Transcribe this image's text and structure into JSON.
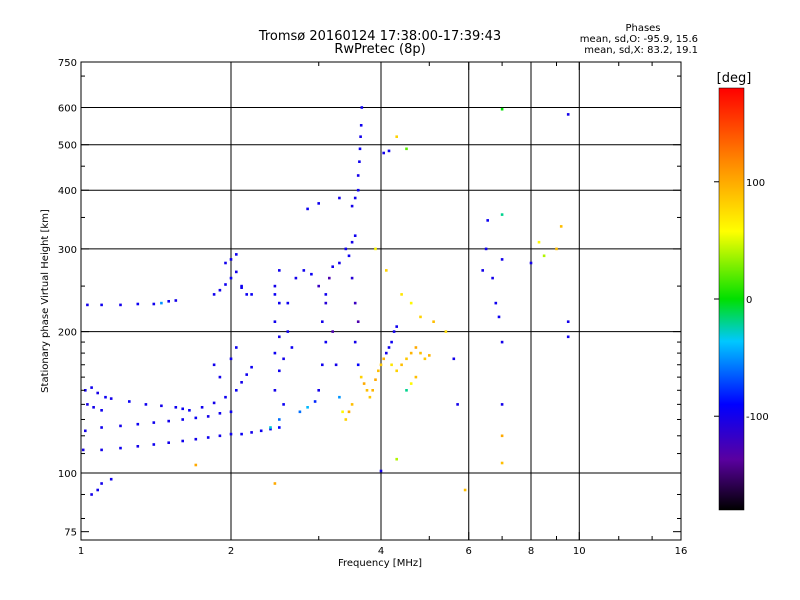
{
  "chart_data": {
    "type": "scatter",
    "title": "Tromsø 20160124 17:38:00-17:39:43",
    "subtitle": "RwPretec (8p)",
    "xlabel": "Frequency [MHz]",
    "ylabel": "Stationary phase Virtual Height [km]",
    "xscale": "log",
    "yscale": "log",
    "xlim": [
      1,
      16
    ],
    "ylim": [
      72,
      750
    ],
    "x_ticks": [
      1,
      2,
      4,
      6,
      8,
      10,
      16
    ],
    "x_tick_labels": [
      "1",
      "2",
      "4",
      "6",
      "8",
      "10",
      "16"
    ],
    "x_minor_ticks": [
      3,
      5,
      7,
      9,
      12,
      14
    ],
    "x_gridlines": [
      2,
      4,
      6,
      8,
      10
    ],
    "y_ticks": [
      75,
      100,
      200,
      300,
      400,
      500,
      600,
      750
    ],
    "y_tick_labels": [
      "75",
      "100",
      "200",
      "300",
      "400",
      "500",
      "600",
      "750"
    ],
    "y_gridlines": [
      100,
      200,
      300,
      400,
      500,
      600
    ],
    "grid": true,
    "stats": {
      "heading": "Phases",
      "line_o": "mean, sd,O: -95.9, 15.6",
      "line_x": "mean, sd,X:  83.2, 19.1"
    },
    "colorbar": {
      "label": "[deg]",
      "range": [
        -180,
        180
      ],
      "ticks": [
        100,
        0,
        -100
      ],
      "tick_labels": [
        "100",
        "0",
        "-100"
      ]
    },
    "series": [
      {
        "points": [
          [
            1.02,
            150,
            -100
          ],
          [
            1.05,
            152,
            -98
          ],
          [
            1.08,
            148,
            -102
          ],
          [
            1.12,
            145,
            -96
          ],
          [
            1.15,
            144,
            -100
          ],
          [
            1.25,
            142,
            -95
          ],
          [
            1.35,
            140,
            -98
          ],
          [
            1.45,
            139,
            -100
          ],
          [
            1.55,
            138,
            -97
          ],
          [
            1.6,
            137,
            -95
          ],
          [
            1.03,
            140,
            -102
          ],
          [
            1.06,
            138,
            -100
          ],
          [
            1.1,
            136,
            -98
          ],
          [
            1.01,
            112,
            -102
          ],
          [
            1.1,
            112,
            -100
          ],
          [
            1.2,
            113,
            -98
          ],
          [
            1.3,
            114,
            -100
          ],
          [
            1.4,
            115,
            -97
          ],
          [
            1.5,
            116,
            -100
          ],
          [
            1.6,
            117,
            -98
          ],
          [
            1.7,
            118,
            -100
          ],
          [
            1.8,
            119,
            -97
          ],
          [
            1.9,
            120,
            -100
          ],
          [
            2.0,
            121,
            -98
          ],
          [
            2.1,
            121,
            -95
          ],
          [
            2.2,
            122,
            -100
          ],
          [
            2.3,
            123,
            -97
          ],
          [
            2.4,
            124,
            -95
          ],
          [
            2.5,
            125,
            -90
          ],
          [
            1.02,
            123,
            -100
          ],
          [
            1.1,
            125,
            -98
          ],
          [
            1.2,
            126,
            -100
          ],
          [
            1.3,
            127,
            -96
          ],
          [
            1.4,
            128,
            -98
          ],
          [
            1.5,
            129,
            -100
          ],
          [
            1.6,
            130,
            -97
          ],
          [
            1.7,
            131,
            -95
          ],
          [
            1.8,
            132,
            -100
          ],
          [
            1.9,
            134,
            -98
          ],
          [
            2.0,
            135,
            -96
          ],
          [
            1.65,
            136,
            -95
          ],
          [
            1.75,
            138,
            -98
          ],
          [
            1.85,
            141,
            -100
          ],
          [
            1.95,
            145,
            -97
          ],
          [
            2.05,
            150,
            -95
          ],
          [
            2.1,
            156,
            -100
          ],
          [
            2.15,
            162,
            -98
          ],
          [
            2.2,
            168,
            -96
          ],
          [
            1.9,
            160,
            -100
          ],
          [
            2.0,
            175,
            -98
          ],
          [
            2.05,
            185,
            -97
          ],
          [
            1.85,
            170,
            -99
          ],
          [
            1.03,
            228,
            -100
          ],
          [
            1.1,
            228,
            -98
          ],
          [
            1.2,
            228,
            -100
          ],
          [
            1.3,
            229,
            -96
          ],
          [
            1.4,
            229,
            -98
          ],
          [
            1.45,
            230,
            -50
          ],
          [
            1.5,
            232,
            -97
          ],
          [
            1.55,
            233,
            -100
          ],
          [
            1.85,
            240,
            -98
          ],
          [
            1.9,
            245,
            -100
          ],
          [
            1.95,
            252,
            -97
          ],
          [
            2.0,
            260,
            -95
          ],
          [
            2.05,
            268,
            -100
          ],
          [
            2.1,
            248,
            -98
          ],
          [
            2.15,
            240,
            -96
          ],
          [
            2.0,
            285,
            -100
          ],
          [
            2.05,
            292,
            -98
          ],
          [
            2.1,
            250,
            -97
          ],
          [
            1.95,
            280,
            -99
          ],
          [
            2.2,
            240,
            -95
          ],
          [
            2.4,
            125,
            -30
          ],
          [
            2.5,
            130,
            -60
          ],
          [
            2.55,
            140,
            -95
          ],
          [
            2.45,
            150,
            -100
          ],
          [
            2.5,
            165,
            -98
          ],
          [
            2.45,
            180,
            -96
          ],
          [
            2.5,
            195,
            -100
          ],
          [
            2.45,
            210,
            -98
          ],
          [
            2.5,
            230,
            -97
          ],
          [
            2.45,
            250,
            -100
          ],
          [
            2.5,
            270,
            -98
          ],
          [
            2.45,
            240,
            -95
          ],
          [
            2.6,
            200,
            -98
          ],
          [
            2.55,
            175,
            -100
          ],
          [
            2.65,
            185,
            -96
          ],
          [
            2.6,
            230,
            -97
          ],
          [
            2.7,
            260,
            -100
          ],
          [
            2.8,
            270,
            -98
          ],
          [
            2.9,
            265,
            -95
          ],
          [
            2.75,
            135,
            -60
          ],
          [
            2.85,
            138,
            -40
          ],
          [
            2.95,
            142,
            -80
          ],
          [
            3.0,
            150,
            -100
          ],
          [
            3.05,
            170,
            -98
          ],
          [
            3.1,
            190,
            -96
          ],
          [
            3.05,
            210,
            -100
          ],
          [
            3.1,
            240,
            -98
          ],
          [
            3.15,
            260,
            -130
          ],
          [
            3.2,
            275,
            -100
          ],
          [
            3.0,
            250,
            -120
          ],
          [
            3.1,
            230,
            -110
          ],
          [
            3.2,
            200,
            -130
          ],
          [
            3.25,
            170,
            -100
          ],
          [
            3.3,
            145,
            -50
          ],
          [
            3.35,
            135,
            60
          ],
          [
            3.4,
            130,
            80
          ],
          [
            3.45,
            135,
            100
          ],
          [
            3.5,
            140,
            90
          ],
          [
            3.3,
            280,
            -100
          ],
          [
            3.4,
            300,
            -98
          ],
          [
            3.45,
            290,
            -96
          ],
          [
            3.5,
            310,
            -100
          ],
          [
            3.55,
            320,
            -98
          ],
          [
            3.5,
            260,
            -110
          ],
          [
            3.55,
            230,
            -120
          ],
          [
            3.6,
            210,
            -130
          ],
          [
            3.55,
            190,
            -100
          ],
          [
            3.6,
            170,
            -90
          ],
          [
            3.65,
            160,
            80
          ],
          [
            3.7,
            155,
            100
          ],
          [
            3.75,
            150,
            90
          ],
          [
            3.8,
            145,
            85
          ],
          [
            3.85,
            150,
            95
          ],
          [
            3.9,
            158,
            100
          ],
          [
            3.95,
            165,
            90
          ],
          [
            4.0,
            170,
            85
          ],
          [
            4.05,
            175,
            95
          ],
          [
            4.1,
            180,
            -100
          ],
          [
            4.15,
            185,
            -98
          ],
          [
            4.2,
            190,
            -96
          ],
          [
            4.25,
            200,
            -100
          ],
          [
            4.3,
            205,
            -98
          ],
          [
            4.2,
            170,
            70
          ],
          [
            4.3,
            165,
            80
          ],
          [
            4.4,
            170,
            90
          ],
          [
            4.5,
            175,
            85
          ],
          [
            4.6,
            180,
            95
          ],
          [
            4.7,
            185,
            100
          ],
          [
            4.8,
            180,
            90
          ],
          [
            4.9,
            175,
            85
          ],
          [
            5.0,
            178,
            95
          ],
          [
            4.5,
            150,
            -20
          ],
          [
            4.6,
            155,
            60
          ],
          [
            4.7,
            160,
            90
          ],
          [
            3.5,
            370,
            -100
          ],
          [
            3.55,
            385,
            -98
          ],
          [
            3.6,
            400,
            -96
          ],
          [
            3.6,
            430,
            -100
          ],
          [
            3.62,
            460,
            -98
          ],
          [
            3.63,
            490,
            -96
          ],
          [
            3.64,
            520,
            -100
          ],
          [
            3.65,
            550,
            -98
          ],
          [
            3.66,
            600,
            -97
          ],
          [
            3.3,
            385,
            -100
          ],
          [
            3.0,
            375,
            -98
          ],
          [
            2.85,
            365,
            -96
          ],
          [
            4.05,
            480,
            -100
          ],
          [
            4.15,
            485,
            -98
          ],
          [
            4.3,
            520,
            80
          ],
          [
            4.5,
            490,
            20
          ],
          [
            3.9,
            300,
            60
          ],
          [
            4.1,
            270,
            80
          ],
          [
            4.4,
            240,
            70
          ],
          [
            4.6,
            230,
            60
          ],
          [
            4.8,
            215,
            80
          ],
          [
            5.1,
            210,
            90
          ],
          [
            5.4,
            200,
            75
          ],
          [
            5.6,
            175,
            -100
          ],
          [
            5.7,
            140,
            -100
          ],
          [
            5.9,
            92,
            90
          ],
          [
            4.3,
            107,
            40
          ],
          [
            4.0,
            101,
            -100
          ],
          [
            2.45,
            95,
            100
          ],
          [
            1.05,
            90,
            -100
          ],
          [
            1.08,
            92,
            -98
          ],
          [
            1.1,
            95,
            -100
          ],
          [
            1.15,
            97,
            -98
          ],
          [
            1.7,
            104,
            100
          ],
          [
            6.4,
            270,
            -100
          ],
          [
            6.5,
            300,
            -98
          ],
          [
            6.55,
            345,
            -96
          ],
          [
            6.7,
            260,
            -100
          ],
          [
            6.8,
            230,
            -98
          ],
          [
            6.9,
            215,
            -96
          ],
          [
            7.0,
            595,
            0
          ],
          [
            7.0,
            355,
            -20
          ],
          [
            7.0,
            285,
            -100
          ],
          [
            7.0,
            190,
            -100
          ],
          [
            7.0,
            140,
            -100
          ],
          [
            7.0,
            120,
            100
          ],
          [
            7.0,
            105,
            90
          ],
          [
            8.0,
            280,
            -100
          ],
          [
            8.3,
            310,
            60
          ],
          [
            8.5,
            290,
            40
          ],
          [
            9.0,
            300,
            90
          ],
          [
            9.2,
            335,
            90
          ],
          [
            9.5,
            580,
            -100
          ],
          [
            9.5,
            210,
            -100
          ],
          [
            9.5,
            195,
            -98
          ]
        ]
      }
    ]
  }
}
